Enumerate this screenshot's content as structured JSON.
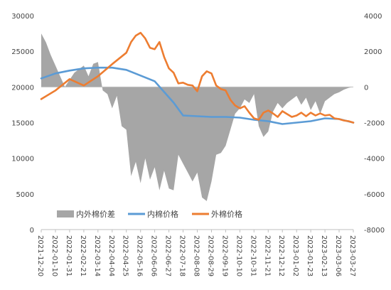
{
  "chart_data": {
    "type": "area+line",
    "title": "",
    "left_axis": {
      "min": 0,
      "max": 30000,
      "step": 5000,
      "ticks": [
        "0",
        "5000",
        "10000",
        "15000",
        "20000",
        "25000",
        "30000"
      ]
    },
    "right_axis": {
      "min": -8000,
      "max": 4000,
      "step": 2000,
      "ticks": [
        "-8000",
        "-6000",
        "-4000",
        "-2000",
        "0",
        "2000",
        "4000"
      ]
    },
    "x_axis": {
      "start": "2021-12-20",
      "end": "2023-03-27",
      "ticks": [
        "2021-12-20",
        "2022-01-10",
        "2022-01-31",
        "2022-02-21",
        "2022-03-14",
        "2022-04-04",
        "2022-04-25",
        "2022-05-16",
        "2022-06-06",
        "2022-06-27",
        "2022-07-18",
        "2022-08-08",
        "2022-08-29",
        "2022-09-19",
        "2022-10-10",
        "2022-10-31",
        "2022-11-21",
        "2022-12-12",
        "2023-01-02",
        "2023-01-23",
        "2023-02-13",
        "2023-03-06",
        "2023-03-27"
      ]
    },
    "grid": false,
    "legend_position": "bottom",
    "colors": {
      "spread": "#a6a6a6",
      "domestic": "#5b9bd5",
      "foreign": "#ed7d31"
    },
    "series": [
      {
        "name": "内外棉价差",
        "kind": "area",
        "axis": "right",
        "points": [
          [
            "2021-12-20",
            3000
          ],
          [
            "2021-12-27",
            2500
          ],
          [
            "2022-01-03",
            1800
          ],
          [
            "2022-01-10",
            1200
          ],
          [
            "2022-01-17",
            600
          ],
          [
            "2022-01-24",
            0
          ],
          [
            "2022-01-31",
            400
          ],
          [
            "2022-02-07",
            800
          ],
          [
            "2022-02-14",
            1000
          ],
          [
            "2022-02-21",
            1200
          ],
          [
            "2022-02-28",
            600
          ],
          [
            "2022-03-07",
            1300
          ],
          [
            "2022-03-14",
            1400
          ],
          [
            "2022-03-21",
            -200
          ],
          [
            "2022-03-28",
            -400
          ],
          [
            "2022-04-04",
            -1200
          ],
          [
            "2022-04-11",
            -500
          ],
          [
            "2022-04-18",
            -2200
          ],
          [
            "2022-04-25",
            -2400
          ],
          [
            "2022-05-02",
            -5000
          ],
          [
            "2022-05-09",
            -4200
          ],
          [
            "2022-05-16",
            -5400
          ],
          [
            "2022-05-23",
            -4000
          ],
          [
            "2022-05-30",
            -5200
          ],
          [
            "2022-06-06",
            -4500
          ],
          [
            "2022-06-13",
            -5800
          ],
          [
            "2022-06-20",
            -4700
          ],
          [
            "2022-06-27",
            -5700
          ],
          [
            "2022-07-04",
            -5800
          ],
          [
            "2022-07-11",
            -3800
          ],
          [
            "2022-07-18",
            -4300
          ],
          [
            "2022-07-25",
            -4800
          ],
          [
            "2022-08-01",
            -5300
          ],
          [
            "2022-08-08",
            -4800
          ],
          [
            "2022-08-15",
            -6200
          ],
          [
            "2022-08-22",
            -6400
          ],
          [
            "2022-08-29",
            -5300
          ],
          [
            "2022-09-05",
            -3800
          ],
          [
            "2022-09-12",
            -3700
          ],
          [
            "2022-09-19",
            -3300
          ],
          [
            "2022-09-26",
            -2400
          ],
          [
            "2022-10-03",
            -1500
          ],
          [
            "2022-10-10",
            -1200
          ],
          [
            "2022-10-17",
            -700
          ],
          [
            "2022-10-24",
            -900
          ],
          [
            "2022-10-31",
            -400
          ],
          [
            "2022-11-07",
            -2200
          ],
          [
            "2022-11-14",
            -2800
          ],
          [
            "2022-11-21",
            -2500
          ],
          [
            "2022-11-28",
            -1400
          ],
          [
            "2022-12-05",
            -900
          ],
          [
            "2022-12-12",
            -1200
          ],
          [
            "2022-12-19",
            -900
          ],
          [
            "2022-12-26",
            -700
          ],
          [
            "2023-01-02",
            -500
          ],
          [
            "2023-01-09",
            -1000
          ],
          [
            "2023-01-16",
            -600
          ],
          [
            "2023-01-23",
            -1300
          ],
          [
            "2023-01-30",
            -800
          ],
          [
            "2023-02-06",
            -1500
          ],
          [
            "2023-02-13",
            -800
          ],
          [
            "2023-02-20",
            -600
          ],
          [
            "2023-02-27",
            -400
          ],
          [
            "2023-03-06",
            -300
          ],
          [
            "2023-03-13",
            -150
          ],
          [
            "2023-03-20",
            -50
          ],
          [
            "2023-03-27",
            0
          ]
        ]
      },
      {
        "name": "内棉价格",
        "kind": "line",
        "axis": "left",
        "points": [
          [
            "2021-12-20",
            21200
          ],
          [
            "2022-01-10",
            21900
          ],
          [
            "2022-01-31",
            22300
          ],
          [
            "2022-02-21",
            22600
          ],
          [
            "2022-03-14",
            22700
          ],
          [
            "2022-04-04",
            22700
          ],
          [
            "2022-04-25",
            22400
          ],
          [
            "2022-05-16",
            21600
          ],
          [
            "2022-06-06",
            20800
          ],
          [
            "2022-06-20",
            19300
          ],
          [
            "2022-07-04",
            17800
          ],
          [
            "2022-07-18",
            16000
          ],
          [
            "2022-08-08",
            15900
          ],
          [
            "2022-08-29",
            15800
          ],
          [
            "2022-09-19",
            15800
          ],
          [
            "2022-10-10",
            15700
          ],
          [
            "2022-10-31",
            15400
          ],
          [
            "2022-11-21",
            15200
          ],
          [
            "2022-12-12",
            14800
          ],
          [
            "2023-01-02",
            15000
          ],
          [
            "2023-01-23",
            15200
          ],
          [
            "2023-02-13",
            15600
          ],
          [
            "2023-03-06",
            15500
          ],
          [
            "2023-03-27",
            15000
          ]
        ]
      },
      {
        "name": "外棉价格",
        "kind": "line",
        "axis": "left",
        "points": [
          [
            "2021-12-20",
            18300
          ],
          [
            "2022-01-10",
            19500
          ],
          [
            "2022-01-31",
            21100
          ],
          [
            "2022-02-21",
            20200
          ],
          [
            "2022-03-14",
            21500
          ],
          [
            "2022-04-04",
            23200
          ],
          [
            "2022-04-25",
            24800
          ],
          [
            "2022-05-02",
            26300
          ],
          [
            "2022-05-09",
            27200
          ],
          [
            "2022-05-16",
            27600
          ],
          [
            "2022-05-23",
            26800
          ],
          [
            "2022-05-30",
            25500
          ],
          [
            "2022-06-06",
            25300
          ],
          [
            "2022-06-13",
            26300
          ],
          [
            "2022-06-20",
            24200
          ],
          [
            "2022-06-27",
            22600
          ],
          [
            "2022-07-04",
            22000
          ],
          [
            "2022-07-11",
            20500
          ],
          [
            "2022-07-18",
            20600
          ],
          [
            "2022-07-25",
            20300
          ],
          [
            "2022-08-01",
            20200
          ],
          [
            "2022-08-08",
            19400
          ],
          [
            "2022-08-15",
            21500
          ],
          [
            "2022-08-22",
            22200
          ],
          [
            "2022-08-29",
            21900
          ],
          [
            "2022-09-05",
            20200
          ],
          [
            "2022-09-12",
            19700
          ],
          [
            "2022-09-19",
            19500
          ],
          [
            "2022-09-26",
            18200
          ],
          [
            "2022-10-03",
            17400
          ],
          [
            "2022-10-10",
            17000
          ],
          [
            "2022-10-17",
            17300
          ],
          [
            "2022-10-24",
            16400
          ],
          [
            "2022-10-31",
            15600
          ],
          [
            "2022-11-07",
            15400
          ],
          [
            "2022-11-14",
            16400
          ],
          [
            "2022-11-21",
            16700
          ],
          [
            "2022-11-28",
            16300
          ],
          [
            "2022-12-05",
            15800
          ],
          [
            "2022-12-12",
            16600
          ],
          [
            "2022-12-19",
            16200
          ],
          [
            "2022-12-26",
            15800
          ],
          [
            "2023-01-02",
            16000
          ],
          [
            "2023-01-09",
            16400
          ],
          [
            "2023-01-16",
            15900
          ],
          [
            "2023-01-23",
            16400
          ],
          [
            "2023-01-30",
            16000
          ],
          [
            "2023-02-06",
            16300
          ],
          [
            "2023-02-13",
            16000
          ],
          [
            "2023-02-20",
            16100
          ],
          [
            "2023-02-27",
            15600
          ],
          [
            "2023-03-06",
            15500
          ],
          [
            "2023-03-13",
            15300
          ],
          [
            "2023-03-20",
            15200
          ],
          [
            "2023-03-27",
            15000
          ]
        ]
      }
    ]
  }
}
